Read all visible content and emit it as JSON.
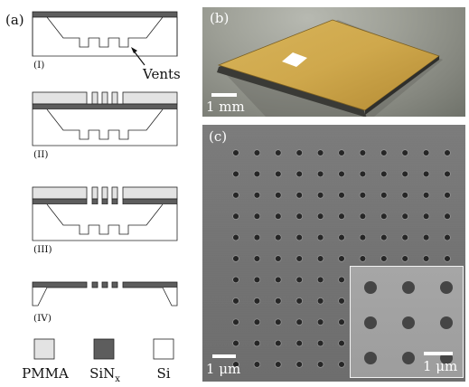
{
  "panels": {
    "a_label": "(a)",
    "b_label": "(b)",
    "c_label": "(c)"
  },
  "schematic": {
    "steps": [
      "(I)",
      "(II)",
      "(III)",
      "(IV)"
    ],
    "vents_label": "Vents"
  },
  "legend": {
    "items": [
      {
        "label": "PMMA",
        "color": "#e3e3e3"
      },
      {
        "label": "SiNx",
        "color": "#5d5d5d"
      },
      {
        "label": "Si",
        "color": "#ffffff"
      }
    ]
  },
  "photo_b": {
    "scale_label": "1 mm"
  },
  "sem_c": {
    "scale_label": "1 μm",
    "inset_scale_label": "1 μm"
  },
  "colors": {
    "pmma": "#e3e3e3",
    "sinx": "#5d5d5d",
    "si": "#ffffff"
  }
}
